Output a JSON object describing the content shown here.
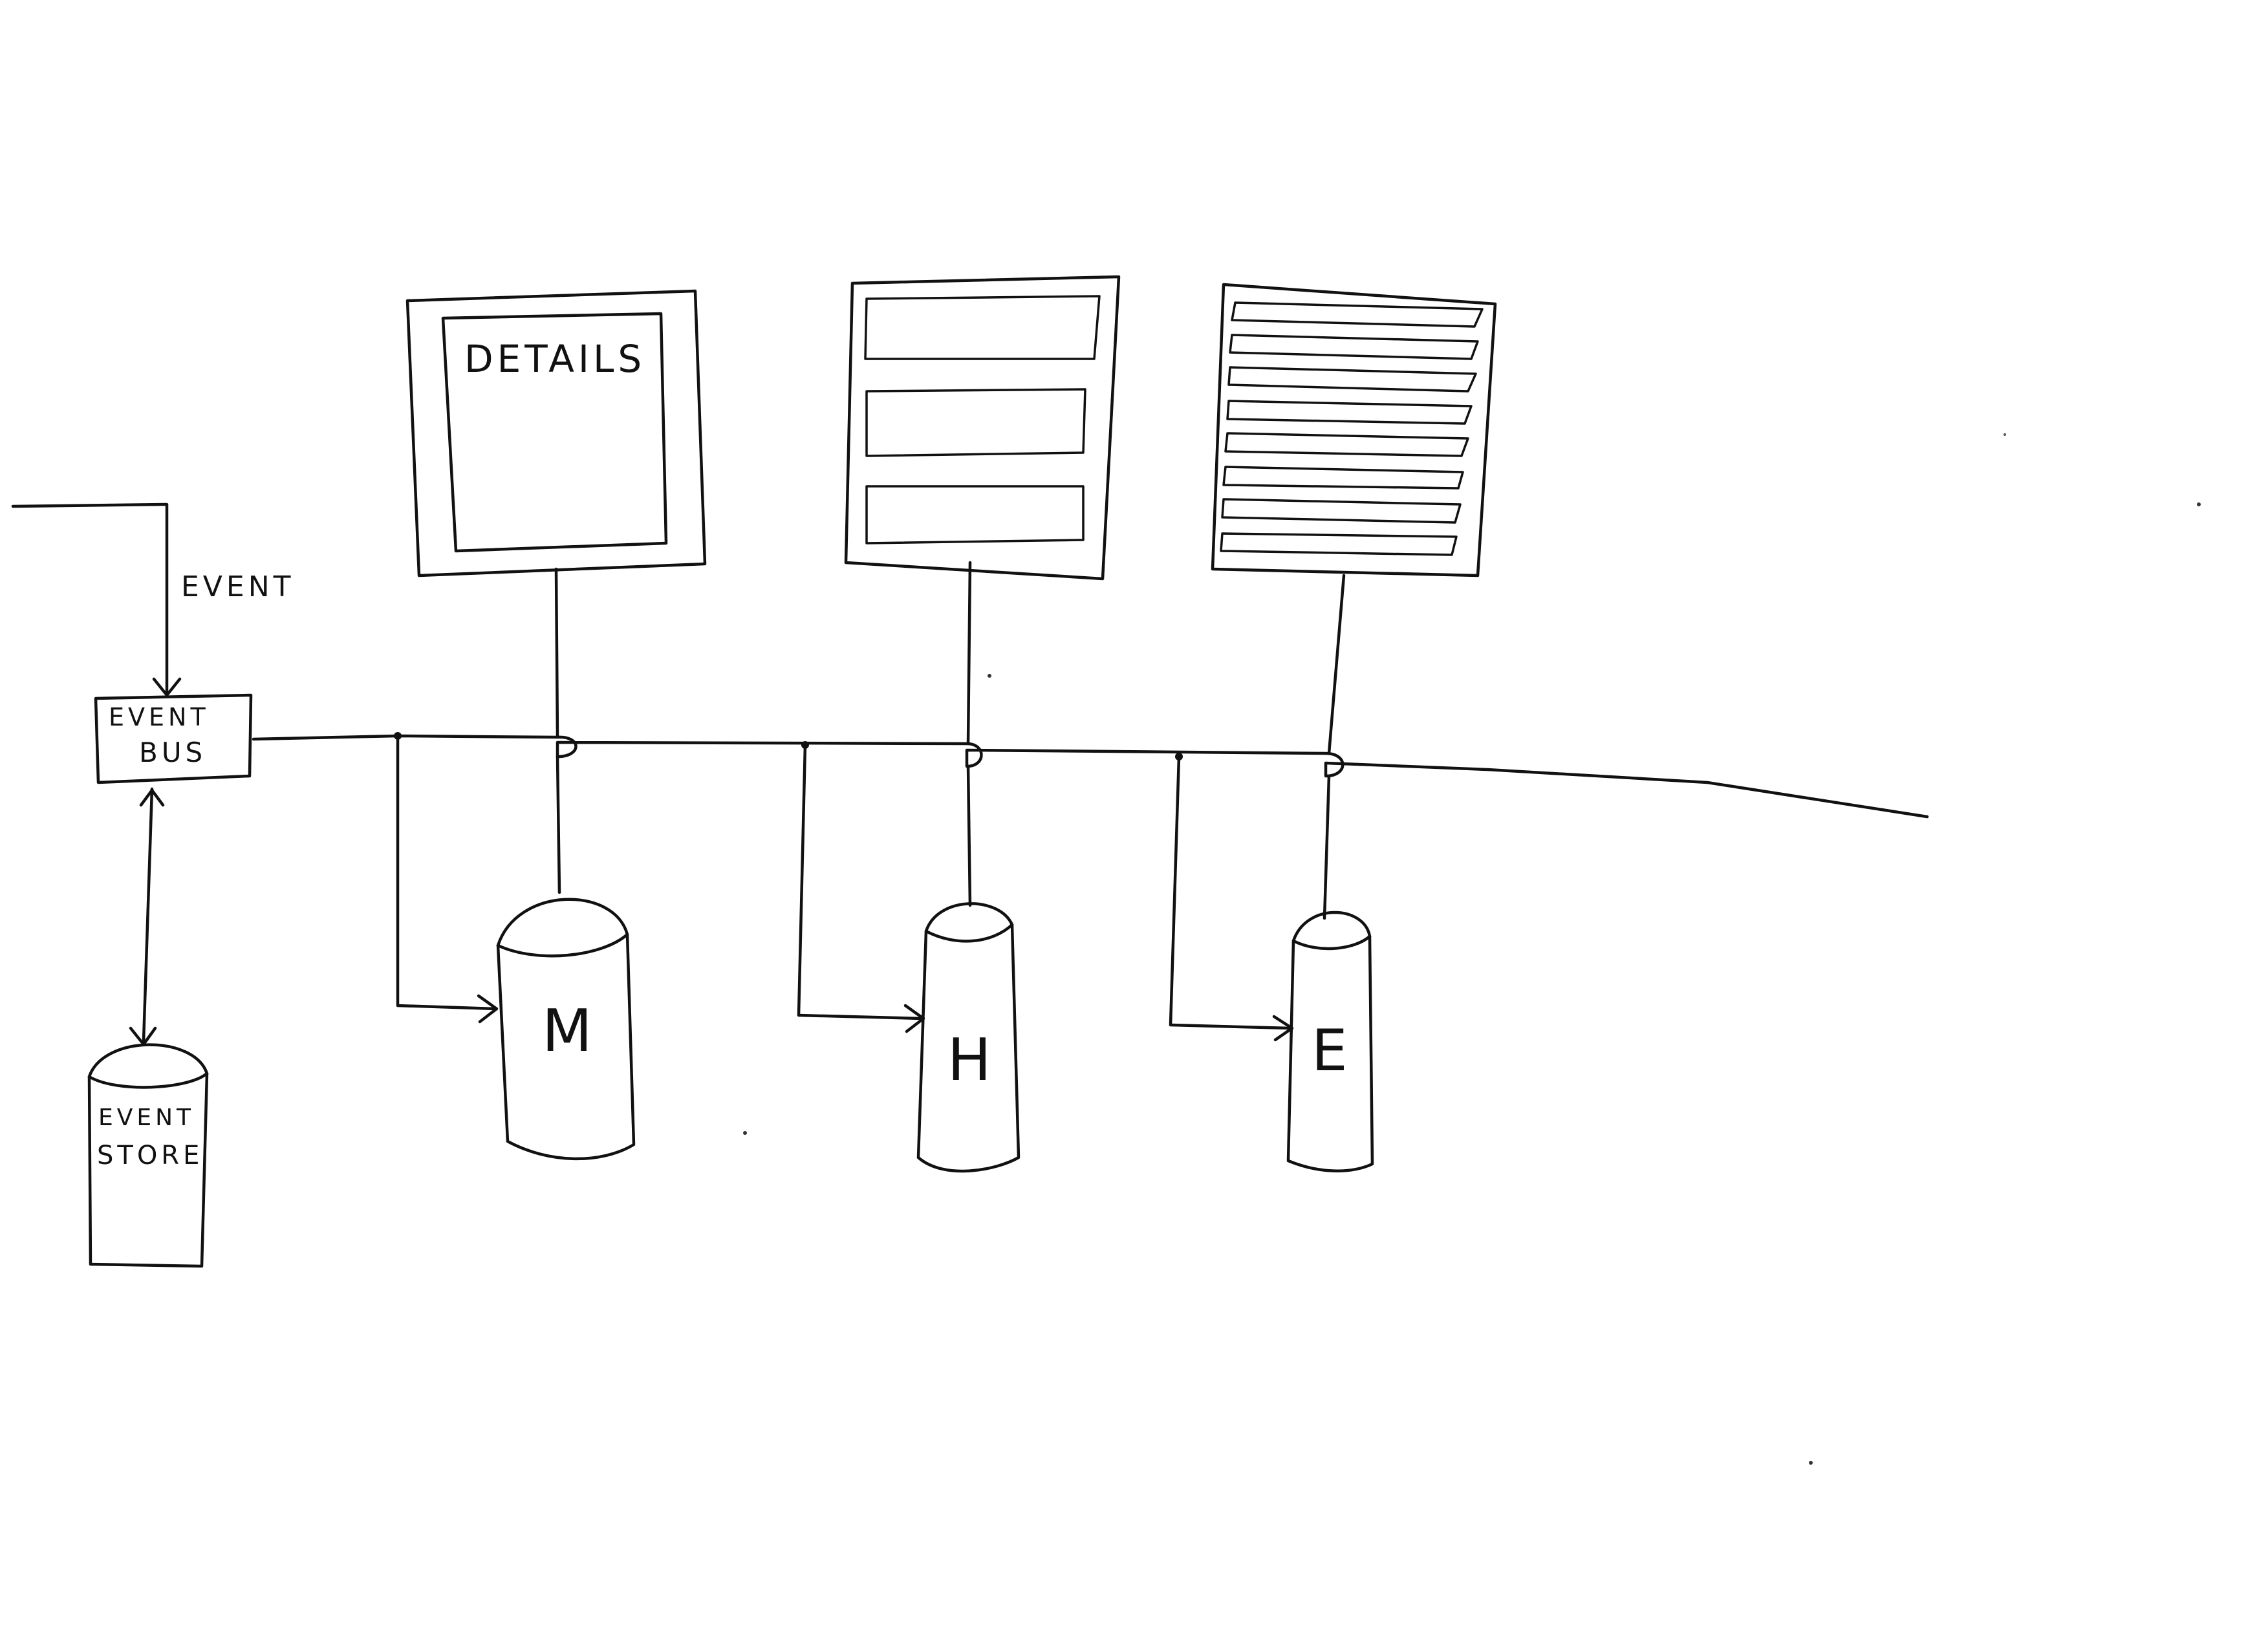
{
  "diagram": {
    "incoming_label": "EVENT",
    "event_bus": {
      "line1": "EVENT",
      "line2": "BUS"
    },
    "event_store": {
      "line1": "EVENT",
      "line2": "STORE"
    },
    "views": [
      {
        "name": "details",
        "label": "DETAILS"
      },
      {
        "name": "list",
        "label": ""
      },
      {
        "name": "list-dense",
        "label": ""
      }
    ],
    "stores": [
      {
        "name": "m",
        "label": "M"
      },
      {
        "name": "h",
        "label": "H"
      },
      {
        "name": "e",
        "label": "E"
      }
    ]
  }
}
